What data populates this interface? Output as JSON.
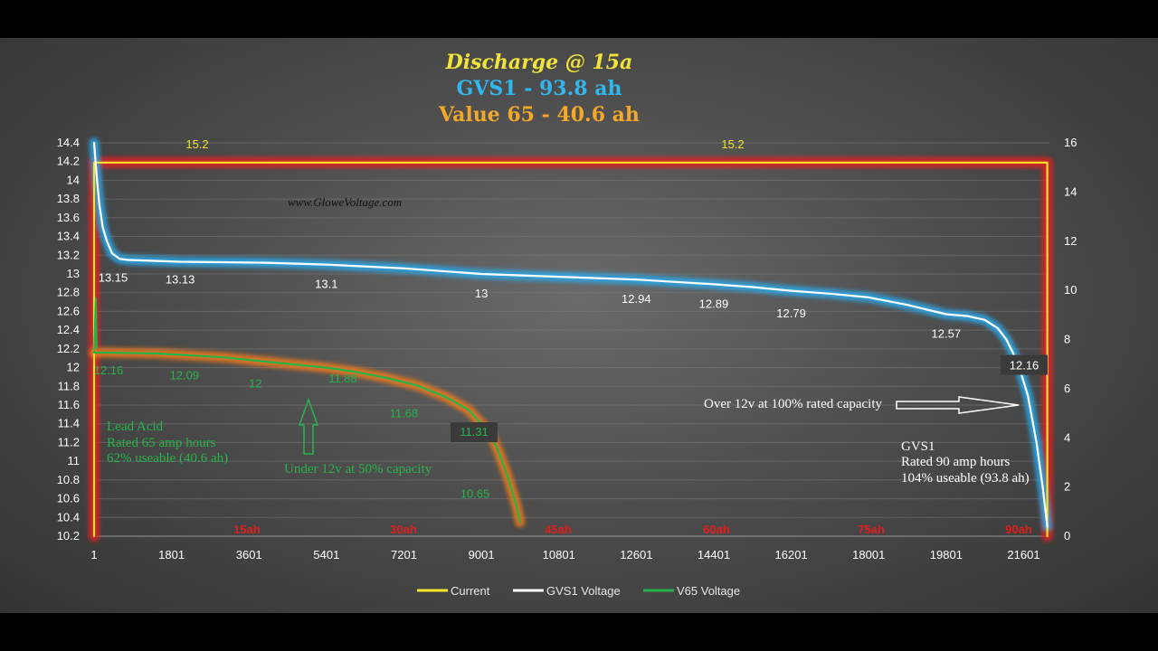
{
  "titles": {
    "line1": "Discharge @ 15a",
    "line2": "GVS1 - 93.8 ah",
    "line3": "Value 65 - 40.6 ah",
    "line1_color": "#f2e33a",
    "line2_color": "#2fb7ee",
    "line3_color": "#f2a82a"
  },
  "watermark": "www.GloweVoltage.com",
  "chart_data": {
    "type": "line",
    "x_ticks": [
      "1",
      "1801",
      "3601",
      "5401",
      "7201",
      "9001",
      "10801",
      "12601",
      "14401",
      "16201",
      "18001",
      "19801",
      "21601"
    ],
    "xlim": [
      1,
      22200
    ],
    "y_left_ticks": [
      "10.2",
      "10.4",
      "10.6",
      "10.8",
      "11",
      "11.2",
      "11.4",
      "11.6",
      "11.8",
      "12",
      "12.2",
      "12.4",
      "12.6",
      "12.8",
      "13",
      "13.2",
      "13.4",
      "13.6",
      "13.8",
      "14",
      "14.2",
      "14.4"
    ],
    "ylim_left": [
      10.2,
      14.4
    ],
    "y_right_ticks": [
      "0",
      "2",
      "4",
      "6",
      "8",
      "10",
      "12",
      "14",
      "16"
    ],
    "ylim_right": [
      0,
      16
    ],
    "grid": true,
    "legend_position": "bottom",
    "legend": [
      {
        "name": "Current",
        "color": "#f5e32a"
      },
      {
        "name": "GVS1 Voltage",
        "color": "#ffffff"
      },
      {
        "name": "V65 Voltage",
        "color": "#27b34a"
      }
    ],
    "series": [
      {
        "name": "Current",
        "axis": "right",
        "color": "#f5e32a",
        "glow": "#e02020",
        "points": [
          [
            1,
            0
          ],
          [
            1,
            15.2
          ],
          [
            22150,
            15.2
          ],
          [
            22150,
            0
          ]
        ]
      },
      {
        "name": "GVS1 Voltage",
        "axis": "left",
        "color": "#ffffff",
        "glow": "#2aa8e8",
        "points": [
          [
            1,
            14.4
          ],
          [
            60,
            14.05
          ],
          [
            120,
            13.75
          ],
          [
            200,
            13.5
          ],
          [
            300,
            13.35
          ],
          [
            420,
            13.22
          ],
          [
            600,
            13.16
          ],
          [
            800,
            13.15
          ],
          [
            2000,
            13.13
          ],
          [
            4000,
            13.12
          ],
          [
            5400,
            13.1
          ],
          [
            7200,
            13.06
          ],
          [
            9000,
            13.0
          ],
          [
            10800,
            12.97
          ],
          [
            12600,
            12.94
          ],
          [
            14400,
            12.89
          ],
          [
            15300,
            12.86
          ],
          [
            16200,
            12.82
          ],
          [
            17100,
            12.79
          ],
          [
            18000,
            12.75
          ],
          [
            18900,
            12.67
          ],
          [
            19800,
            12.57
          ],
          [
            20300,
            12.55
          ],
          [
            20700,
            12.51
          ],
          [
            21000,
            12.42
          ],
          [
            21200,
            12.3
          ],
          [
            21350,
            12.16
          ],
          [
            21500,
            12.0
          ],
          [
            21700,
            11.7
          ],
          [
            21900,
            11.2
          ],
          [
            22050,
            10.7
          ],
          [
            22150,
            10.3
          ]
        ]
      },
      {
        "name": "V65 Voltage",
        "axis": "left",
        "color": "#27b34a",
        "glow": "#f07a1a",
        "points": [
          [
            1,
            12.16
          ],
          [
            300,
            12.16
          ],
          [
            1500,
            12.15
          ],
          [
            3000,
            12.11
          ],
          [
            4500,
            12.04
          ],
          [
            5400,
            12.0
          ],
          [
            6000,
            11.96
          ],
          [
            6800,
            11.89
          ],
          [
            7500,
            11.81
          ],
          [
            8200,
            11.68
          ],
          [
            8700,
            11.55
          ],
          [
            9000,
            11.4
          ],
          [
            9200,
            11.31
          ],
          [
            9400,
            11.1
          ],
          [
            9600,
            10.85
          ],
          [
            9800,
            10.55
          ],
          [
            9900,
            10.35
          ]
        ]
      }
    ],
    "v65_initial_spike": [
      [
        1,
        12.16
      ],
      [
        20,
        12.45
      ],
      [
        40,
        12.75
      ],
      [
        60,
        12.2
      ]
    ],
    "gvs1_labels": [
      "13.15",
      "13.13",
      "13.1",
      "13",
      "12.94",
      "12.89",
      "12.79",
      "12.57",
      "12.16"
    ],
    "v65_labels": [
      "12.16",
      "12.09",
      "12",
      "11.88",
      "11.68",
      "11.31",
      "10.65"
    ],
    "current_labels": [
      "15.2",
      "15.2"
    ],
    "ah_markers": [
      "15ah",
      "30ah",
      "45ah",
      "60ah",
      "75ah",
      "90ah"
    ],
    "annotations": {
      "lead_acid_1": "Lead Acid",
      "lead_acid_2": "Rated 65 amp hours",
      "lead_acid_3": "62% useable (40.6 ah)",
      "under_12v": "Under 12v at 50% capacity",
      "over_12v": "Over 12v at 100% rated capacity",
      "gvs1_1": "GVS1",
      "gvs1_2": "Rated 90 amp hours",
      "gvs1_3": "104% useable (93.8 ah)"
    }
  }
}
